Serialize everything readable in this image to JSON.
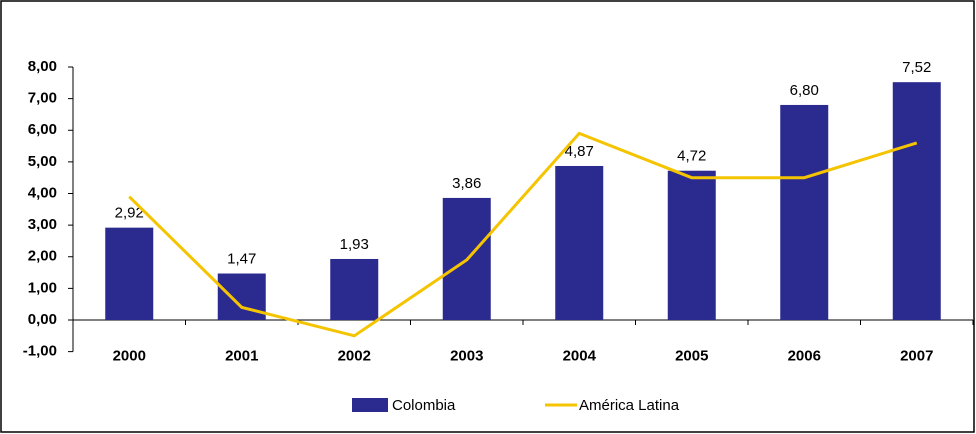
{
  "chart_data": {
    "type": "bar_line",
    "categories": [
      "2000",
      "2001",
      "2002",
      "2003",
      "2004",
      "2005",
      "2006",
      "2007"
    ],
    "series": [
      {
        "name": "Colombia",
        "type": "bar",
        "color": "#2b2a8f",
        "values": [
          2.92,
          1.47,
          1.93,
          3.86,
          4.87,
          4.72,
          6.8,
          7.52
        ],
        "value_labels": [
          "2,92",
          "1,47",
          "1,93",
          "3,86",
          "4,87",
          "4,72",
          "6,80",
          "7,52"
        ]
      },
      {
        "name": "América Latina",
        "type": "line",
        "color": "#f5c400",
        "values": [
          3.9,
          0.4,
          -0.5,
          1.9,
          5.9,
          4.5,
          4.5,
          5.6
        ]
      }
    ],
    "ylim": [
      -1,
      8
    ],
    "yticks": [
      {
        "value": -1,
        "label": "-1,00"
      },
      {
        "value": 0,
        "label": "0,00"
      },
      {
        "value": 1,
        "label": "1,00"
      },
      {
        "value": 2,
        "label": "2,00"
      },
      {
        "value": 3,
        "label": "3,00"
      },
      {
        "value": 4,
        "label": "4,00"
      },
      {
        "value": 5,
        "label": "5,00"
      },
      {
        "value": 6,
        "label": "6,00"
      },
      {
        "value": 7,
        "label": "7,00"
      },
      {
        "value": 8,
        "label": "8,00"
      }
    ],
    "legend": "bottom"
  }
}
